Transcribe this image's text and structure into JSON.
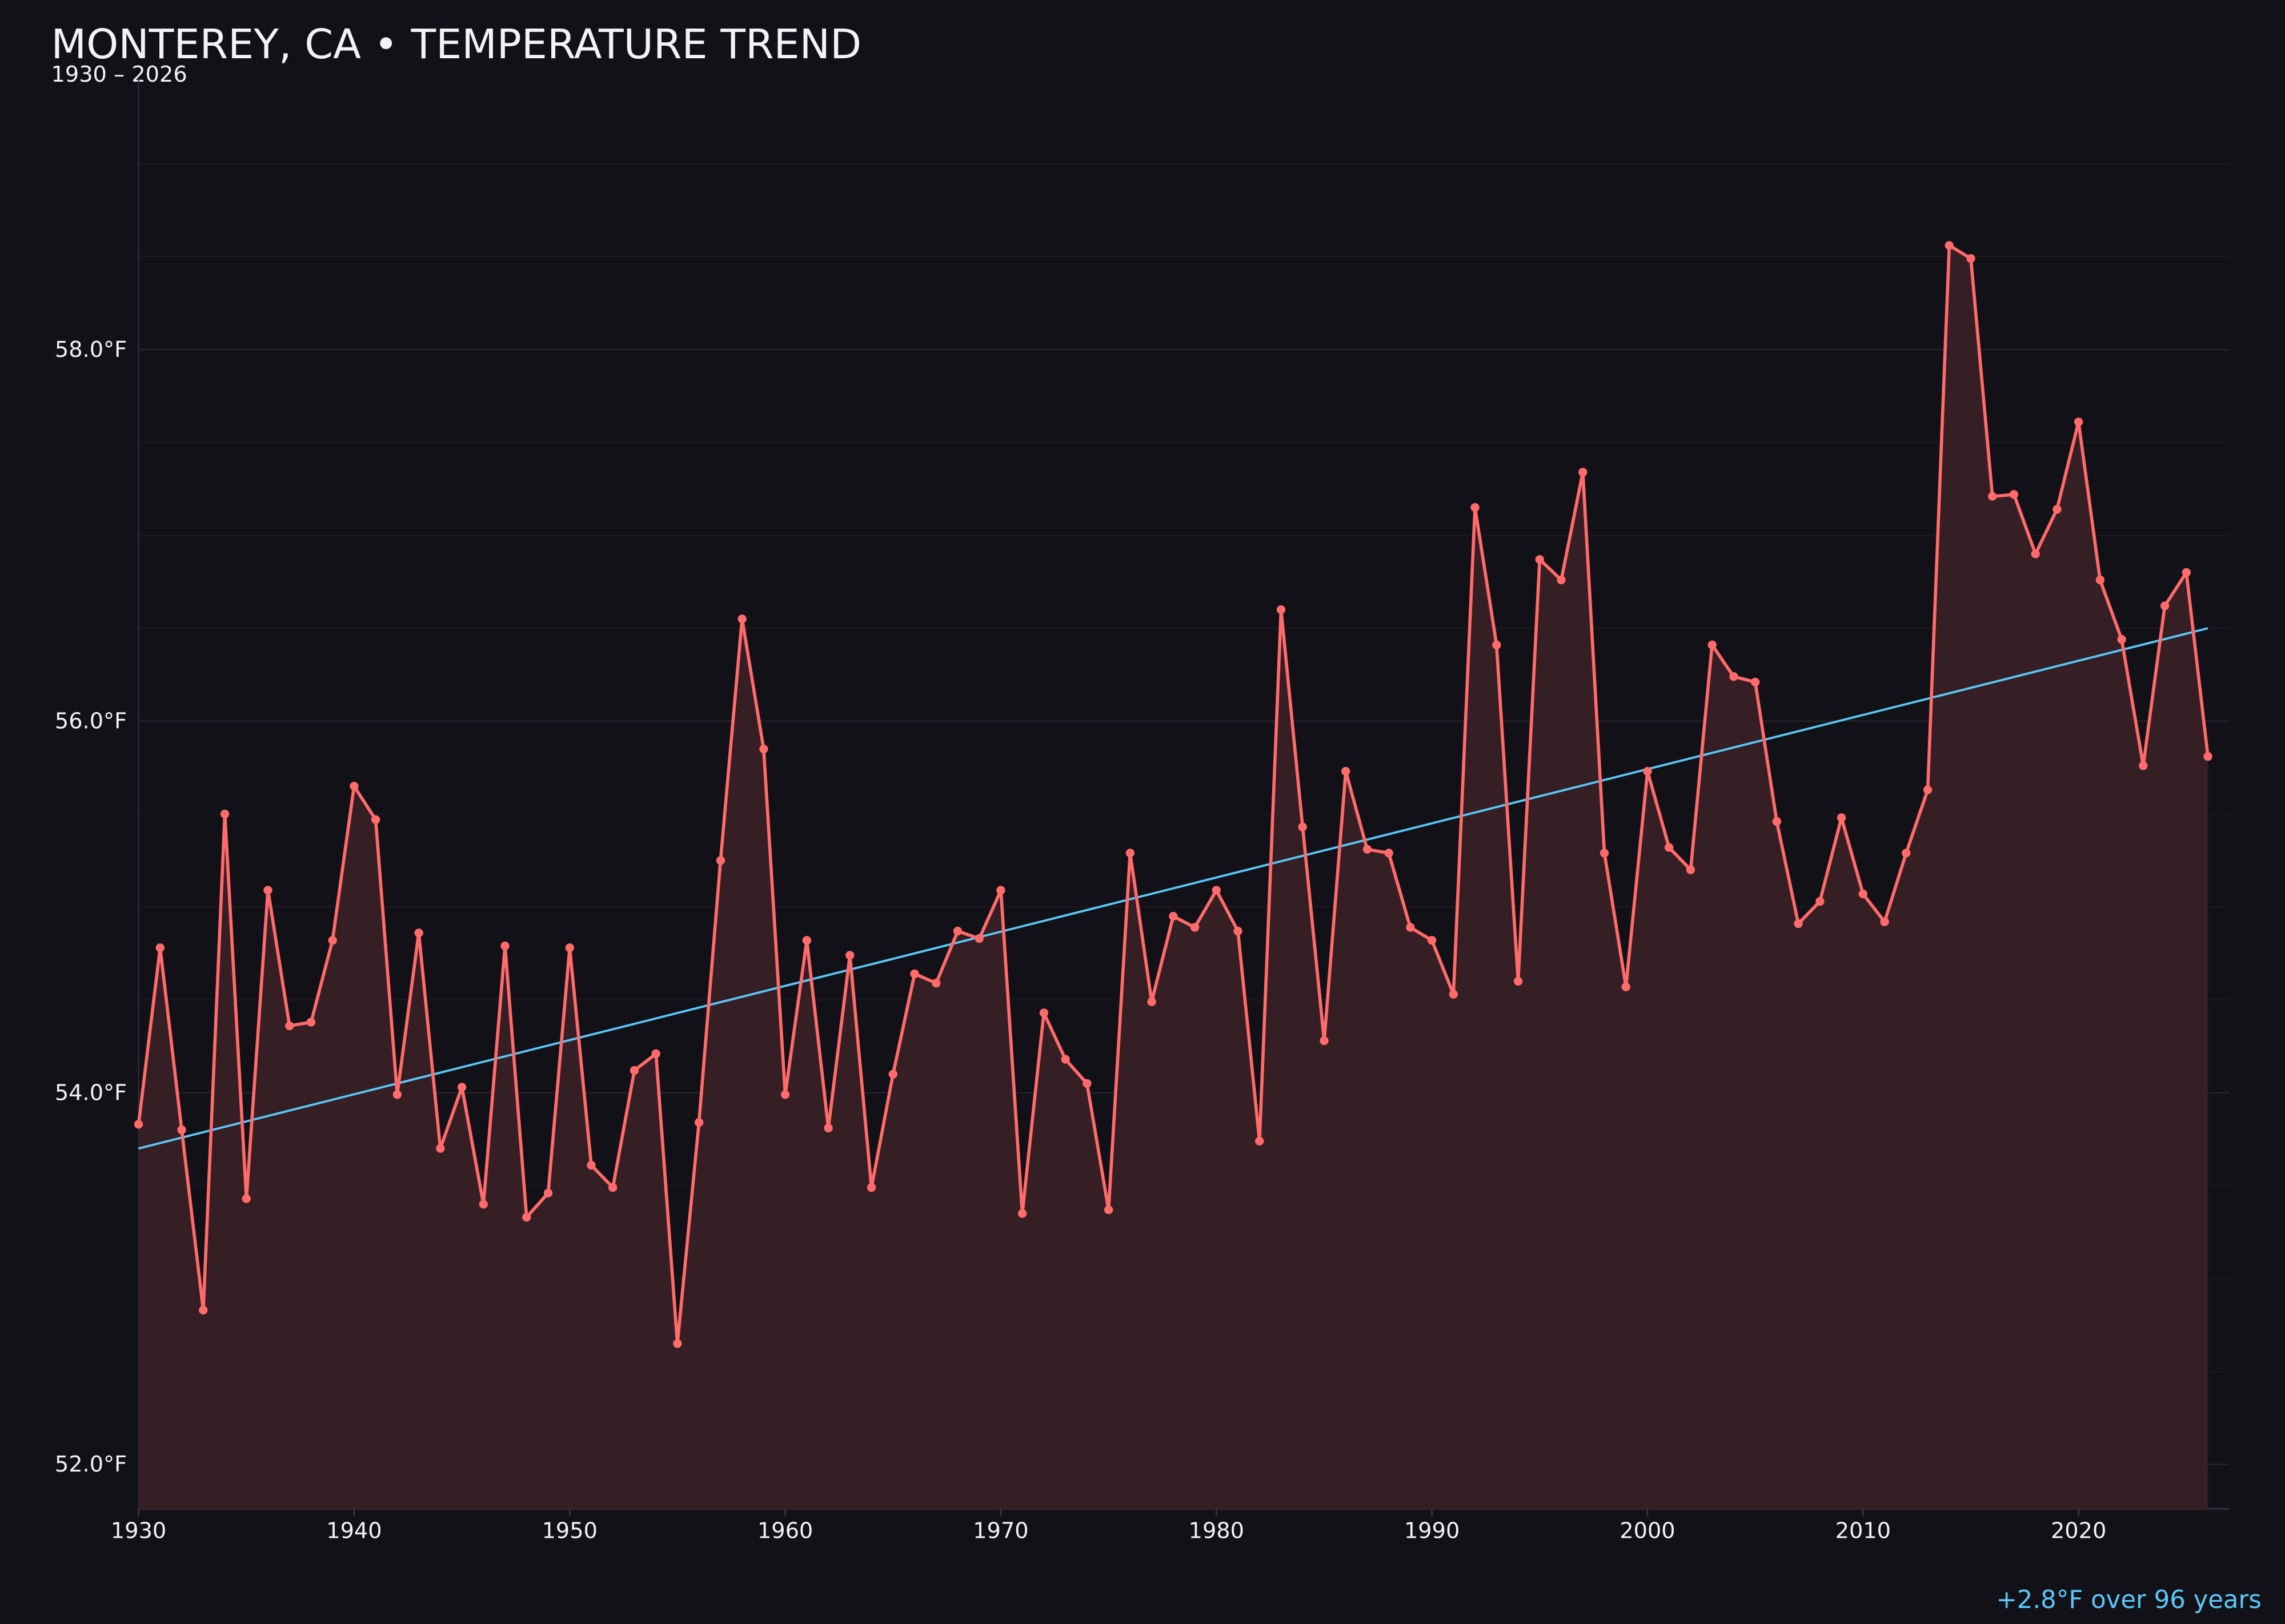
{
  "chart_data": {
    "type": "line",
    "title": "MONTEREY, CA • TEMPERATURE TREND",
    "subtitle": "1930 – 2026",
    "annotation": "+2.8°F over 96 years",
    "xlabel": "",
    "ylabel": "",
    "xlim": [
      1930,
      2027
    ],
    "ylim": [
      51.76,
      59.45
    ],
    "x_ticks": [
      1930,
      1940,
      1950,
      1960,
      1970,
      1980,
      1990,
      2000,
      2010,
      2020
    ],
    "x_tick_labels": [
      "1930",
      "1940",
      "1950",
      "1960",
      "1970",
      "1980",
      "1990",
      "2000",
      "2010",
      "2020"
    ],
    "y_ticks": [
      52,
      54,
      56,
      58
    ],
    "y_tick_labels": [
      "52.0°F",
      "54.0°F",
      "56.0°F",
      "58.0°F"
    ],
    "grid": true,
    "colors": {
      "background": "#121117",
      "series": "#ff6b6b",
      "fill": "#361e25",
      "trend": "#5ac8fa",
      "text": "#f2f2f7"
    },
    "x": [
      1930,
      1931,
      1932,
      1933,
      1934,
      1935,
      1936,
      1937,
      1938,
      1939,
      1940,
      1941,
      1942,
      1943,
      1944,
      1945,
      1946,
      1947,
      1948,
      1949,
      1950,
      1951,
      1952,
      1953,
      1954,
      1955,
      1956,
      1957,
      1958,
      1959,
      1960,
      1961,
      1962,
      1963,
      1964,
      1965,
      1966,
      1967,
      1968,
      1969,
      1970,
      1971,
      1972,
      1973,
      1974,
      1975,
      1976,
      1977,
      1978,
      1979,
      1980,
      1981,
      1982,
      1983,
      1984,
      1985,
      1986,
      1987,
      1988,
      1989,
      1990,
      1991,
      1992,
      1993,
      1994,
      1995,
      1996,
      1997,
      1998,
      1999,
      2000,
      2001,
      2002,
      2003,
      2004,
      2005,
      2006,
      2007,
      2008,
      2009,
      2010,
      2011,
      2012,
      2013,
      2014,
      2015,
      2016,
      2017,
      2018,
      2019,
      2020,
      2021,
      2022,
      2023,
      2024,
      2025,
      2026
    ],
    "series": [
      {
        "values": [
          53.83,
          54.78,
          53.8,
          52.83,
          55.5,
          53.43,
          55.09,
          54.36,
          54.38,
          54.82,
          55.65,
          55.47,
          53.99,
          54.86,
          53.7,
          54.03,
          53.4,
          54.79,
          53.33,
          53.46,
          54.78,
          53.61,
          53.49,
          54.12,
          54.21,
          52.65,
          53.84,
          55.25,
          56.55,
          55.85,
          53.99,
          54.82,
          53.81,
          54.74,
          53.49,
          54.1,
          54.64,
          54.59,
          54.87,
          54.83,
          55.09,
          53.35,
          54.43,
          54.18,
          54.05,
          53.37,
          55.29,
          54.49,
          54.95,
          54.89,
          55.09,
          54.87,
          53.74,
          56.6,
          55.43,
          54.28,
          55.73,
          55.31,
          55.29,
          54.89,
          54.82,
          54.53,
          57.15,
          56.41,
          54.6,
          56.87,
          56.76,
          57.34,
          55.29,
          54.57,
          55.73,
          55.32,
          55.2,
          56.41,
          56.24,
          56.21,
          55.46,
          54.91,
          55.03,
          55.48,
          55.07,
          54.92,
          55.29,
          55.63,
          58.56,
          58.49,
          57.21,
          57.22,
          56.9,
          57.14,
          57.61,
          56.76,
          56.44,
          55.76,
          56.62,
          56.8,
          55.81
        ]
      }
    ],
    "trend": {
      "x": [
        1930,
        2026
      ],
      "y": [
        53.7,
        56.5
      ]
    }
  }
}
